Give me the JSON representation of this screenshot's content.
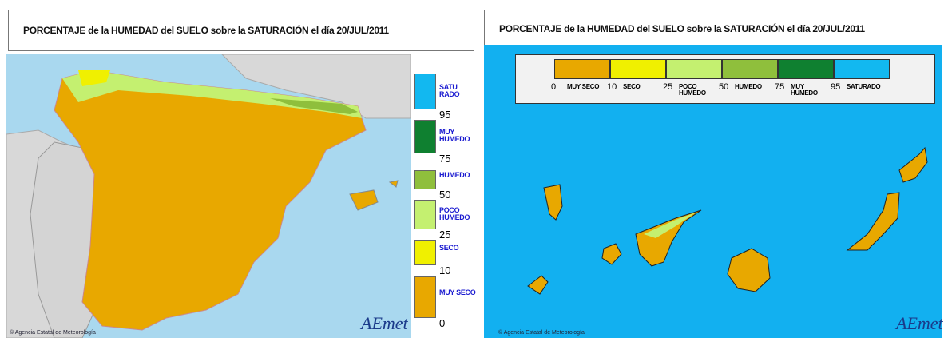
{
  "panels": [
    {
      "title": "PORCENTAJE de la HUMEDAD del SUELO sobre la SATURACIÓN el día 20/JUL/2011",
      "footer": "© Agencia Estatal de Meteorología",
      "logo": "AEmet"
    },
    {
      "title": "PORCENTAJE de la HUMEDAD del SUELO sobre la SATURACIÓN el día 20/JUL/2011",
      "footer": "© Agencia Estatal de Meteorología",
      "logo": "AEmet"
    }
  ],
  "legend": {
    "classes": [
      {
        "label": "MUY SECO",
        "color": "#e8a800"
      },
      {
        "label": "SECO",
        "color": "#f0f000"
      },
      {
        "label": "POCO HUMEDO",
        "color": "#c4f070"
      },
      {
        "label": "HUMEDO",
        "color": "#8fbf3c"
      },
      {
        "label": "MUY HUMEDO",
        "color": "#0f8030"
      },
      {
        "label": "SATURADO",
        "color": "#12b8f0"
      }
    ],
    "thresholds": [
      "0",
      "10",
      "25",
      "50",
      "75",
      "95"
    ]
  }
}
